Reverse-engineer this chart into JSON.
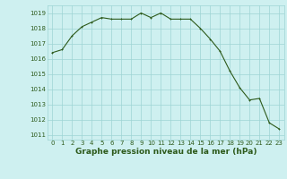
{
  "x": [
    0,
    1,
    2,
    3,
    4,
    5,
    6,
    7,
    8,
    9,
    10,
    11,
    12,
    13,
    14,
    15,
    16,
    17,
    18,
    19,
    20,
    21,
    22,
    23
  ],
  "y": [
    1016.4,
    1016.6,
    1017.5,
    1018.1,
    1018.4,
    1018.7,
    1018.6,
    1018.6,
    1018.6,
    1019.0,
    1018.7,
    1019.0,
    1018.6,
    1018.6,
    1018.6,
    1018.0,
    1017.3,
    1016.5,
    1015.2,
    1014.1,
    1013.3,
    1013.4,
    1011.8,
    1011.4
  ],
  "line_color": "#2d5a1b",
  "marker_color": "#2d5a1b",
  "bg_color": "#cef0f0",
  "grid_color": "#9ed4d4",
  "xlabel": "Graphe pression niveau de la mer (hPa)",
  "ylim": [
    1010.7,
    1019.5
  ],
  "xlim": [
    -0.5,
    23.5
  ],
  "yticks": [
    1011,
    1012,
    1013,
    1014,
    1015,
    1016,
    1017,
    1018,
    1019
  ],
  "xticks": [
    0,
    1,
    2,
    3,
    4,
    5,
    6,
    7,
    8,
    9,
    10,
    11,
    12,
    13,
    14,
    15,
    16,
    17,
    18,
    19,
    20,
    21,
    22,
    23
  ],
  "tick_fontsize": 5.0,
  "xlabel_fontsize": 6.5,
  "line_width": 0.8,
  "marker_size": 2.0
}
